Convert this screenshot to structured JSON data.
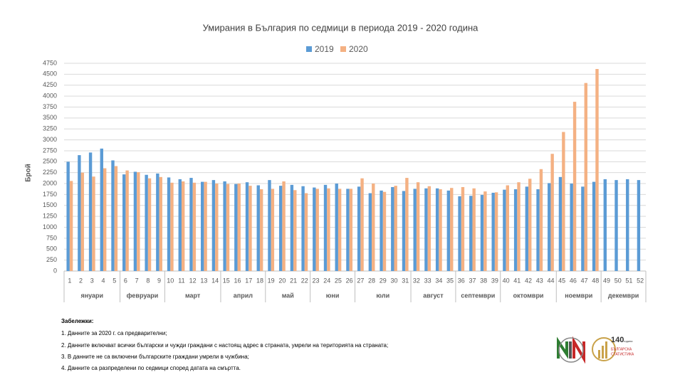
{
  "chart_data": {
    "type": "bar",
    "title": "Умирания в България по седмици в периода 2019 - 2020 година",
    "y_label": "Брой",
    "ylim": [
      0,
      4750
    ],
    "yticks": [
      0,
      250,
      500,
      750,
      1000,
      1250,
      1500,
      1750,
      2000,
      2250,
      2500,
      2750,
      3000,
      3250,
      3500,
      3750,
      4000,
      4250,
      4500,
      4750
    ],
    "grid": true,
    "legend": "top",
    "month_groups": [
      {
        "label": "януари",
        "weeks": [
          "1",
          "2",
          "3",
          "4",
          "5"
        ]
      },
      {
        "label": "февруари",
        "weeks": [
          "6",
          "7",
          "8",
          "9"
        ]
      },
      {
        "label": "март",
        "weeks": [
          "10",
          "11",
          "12",
          "13",
          "14"
        ]
      },
      {
        "label": "април",
        "weeks": [
          "15",
          "16",
          "17",
          "18"
        ]
      },
      {
        "label": "май",
        "weeks": [
          "19",
          "20",
          "21",
          "22"
        ]
      },
      {
        "label": "юни",
        "weeks": [
          "23",
          "24",
          "25",
          "26"
        ]
      },
      {
        "label": "юли",
        "weeks": [
          "27",
          "28",
          "29",
          "30",
          "31"
        ]
      },
      {
        "label": "август",
        "weeks": [
          "32",
          "33",
          "34",
          "35"
        ]
      },
      {
        "label": "септември",
        "weeks": [
          "36",
          "37",
          "38",
          "39"
        ]
      },
      {
        "label": "октомври",
        "weeks": [
          "40",
          "41",
          "42",
          "43",
          "44"
        ]
      },
      {
        "label": "ноември",
        "weeks": [
          "45",
          "46",
          "47",
          "48"
        ]
      },
      {
        "label": "декември",
        "weeks": [
          "49",
          "50",
          "51",
          "52"
        ]
      }
    ],
    "series": [
      {
        "name": "2019",
        "color": "#5b9bd5",
        "values": [
          2500,
          2650,
          2710,
          2800,
          2530,
          2210,
          2270,
          2200,
          2230,
          2140,
          2100,
          2130,
          2040,
          2080,
          2050,
          1990,
          2030,
          1960,
          2080,
          1950,
          1970,
          1940,
          1910,
          1970,
          2000,
          1880,
          1930,
          1780,
          1840,
          1920,
          1830,
          1880,
          1890,
          1890,
          1840,
          1710,
          1720,
          1740,
          1790,
          1860,
          1870,
          1930,
          1870,
          2010,
          2150,
          2000,
          1930,
          2040,
          2100,
          2080,
          2100,
          2080
        ]
      },
      {
        "name": "2020",
        "color": "#f4b183",
        "values": [
          2060,
          2250,
          2160,
          2350,
          2400,
          2300,
          2260,
          2120,
          2150,
          2020,
          2050,
          2020,
          2040,
          2000,
          1990,
          2000,
          1950,
          1870,
          1880,
          2050,
          1850,
          1780,
          1880,
          1890,
          1880,
          1880,
          2120,
          2000,
          1810,
          1950,
          2130,
          2030,
          1940,
          1870,
          1900,
          1920,
          1890,
          1820,
          1800,
          1960,
          2030,
          2110,
          2330,
          2680,
          3180,
          3870,
          4300,
          4620,
          null,
          null,
          null,
          null
        ]
      }
    ]
  },
  "notes": {
    "title": "Забележки:",
    "items": [
      "1. Данните за 2020 г. са предварителни;",
      "2. Данните включват всички български и чужди граждани с настоящ адрес в страната, умрели на територията на страната;",
      "3. В данните не са включени българските граждани умрели в чужбина;",
      "4. Данните са разпределени по седмици според датата на смъртта."
    ]
  },
  "logo": {
    "number": "140",
    "years": "години",
    "line1": "БЪЛГАРСКА",
    "line2": "СТАТИСТИКА"
  }
}
